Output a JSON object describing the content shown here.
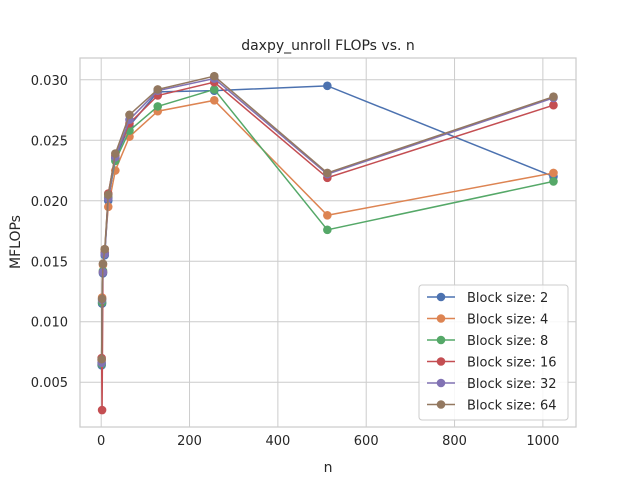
{
  "chart_data": {
    "type": "line",
    "title": "daxpy_unroll FLOPs vs. n",
    "xlabel": "n",
    "ylabel": "MFLOPs",
    "xlim": [
      -48,
      1075
    ],
    "ylim": [
      0.0013,
      0.0318
    ],
    "xticks": [
      0,
      200,
      400,
      600,
      800,
      1000
    ],
    "xtick_labels": [
      "0",
      "200",
      "400",
      "600",
      "800",
      "1000"
    ],
    "yticks": [
      0.005,
      0.01,
      0.015,
      0.02,
      0.025,
      0.03
    ],
    "ytick_labels": [
      "0.005",
      "0.010",
      "0.015",
      "0.020",
      "0.025",
      "0.030"
    ],
    "grid": true,
    "legend_position": "lower-right",
    "x": [
      1,
      2,
      4,
      8,
      16,
      32,
      64,
      128,
      256,
      512,
      1024
    ],
    "series": [
      {
        "name": "Block size: 2",
        "color": "#4c72b0",
        "values": [
          0.0064,
          0.0115,
          0.014,
          0.0155,
          0.02,
          0.0235,
          0.0262,
          0.029,
          0.0291,
          0.0295,
          0.022
        ]
      },
      {
        "name": "Block size: 4",
        "color": "#dd8452",
        "values": [
          0.0068,
          0.012,
          0.0147,
          0.016,
          0.0195,
          0.0225,
          0.0253,
          0.0274,
          0.0283,
          0.0188,
          0.0223
        ]
      },
      {
        "name": "Block size: 8",
        "color": "#55a868",
        "values": [
          0.0065,
          0.0116,
          0.0142,
          0.0157,
          0.0203,
          0.0233,
          0.0258,
          0.0278,
          0.0292,
          0.0176,
          0.0216
        ]
      },
      {
        "name": "Block size: 16",
        "color": "#c44e52",
        "values": [
          0.007,
          0.0027,
          0.0141,
          0.0157,
          0.0206,
          0.0237,
          0.0264,
          0.0287,
          0.0298,
          0.0219,
          0.0279
        ]
      },
      {
        "name": "Block size: 32",
        "color": "#8172b3",
        "values": [
          0.0066,
          0.0118,
          0.0141,
          0.0156,
          0.0202,
          0.0236,
          0.0267,
          0.0291,
          0.0301,
          0.0222,
          0.0285
        ]
      },
      {
        "name": "Block size: 64",
        "color": "#937860",
        "values": [
          0.0069,
          0.0119,
          0.0148,
          0.016,
          0.0205,
          0.0239,
          0.0271,
          0.0292,
          0.0303,
          0.0223,
          0.0286
        ]
      }
    ]
  }
}
